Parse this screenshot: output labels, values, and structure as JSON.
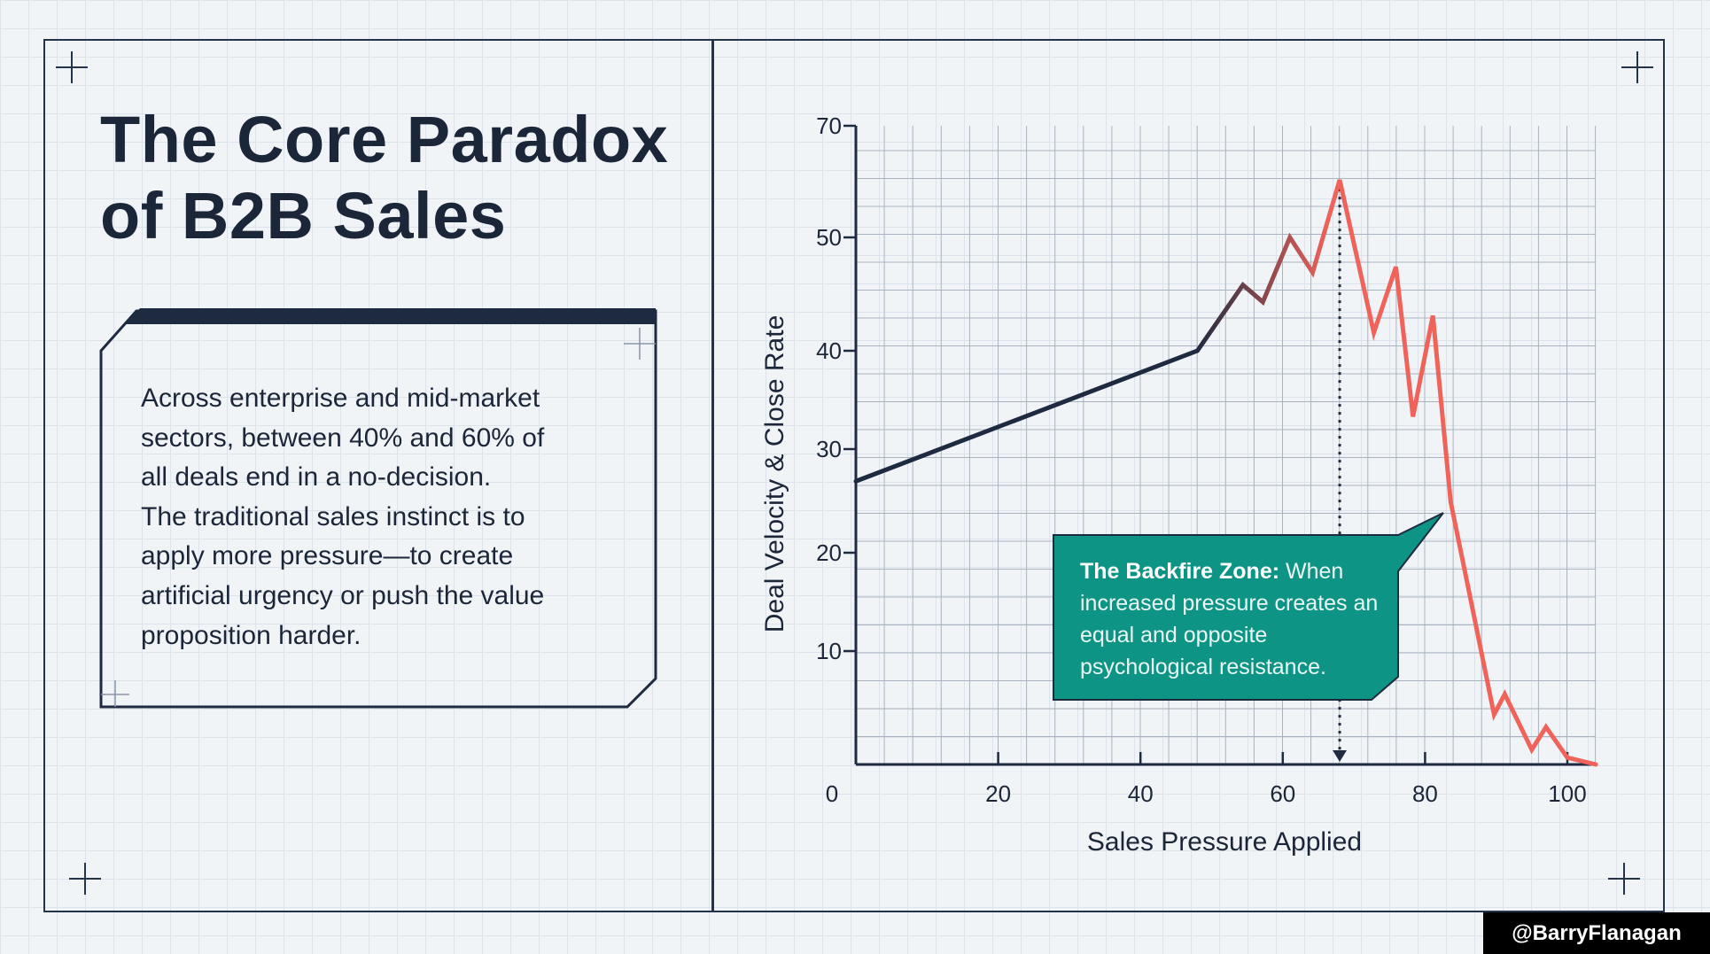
{
  "title_lines": [
    "The Core Paradox",
    "of B2B Sales"
  ],
  "body_lines": [
    "Across enterprise and mid-market",
    "sectors, between 40% and 60% of",
    "all deals end in a no-decision.",
    "The traditional sales instinct is to",
    "apply more pressure—to create",
    "artificial urgency or push the value",
    "proposition harder."
  ],
  "callout": {
    "title": "The Backfire Zone:",
    "text": "When increased pressure creates an equal and opposite psychological resistance.",
    "color": "#0e9485"
  },
  "watermark": "@BarryFlanagan",
  "chart_data": {
    "type": "line",
    "xlabel": "Sales Pressure Applied",
    "ylabel": "Deal Velocity & Close Rate",
    "x_ticks": [
      0,
      20,
      40,
      60,
      80,
      100
    ],
    "y_ticks": [
      10,
      20,
      30,
      40,
      50,
      70
    ],
    "xlim": [
      0,
      104
    ],
    "ylim": [
      0,
      70
    ],
    "grid": true,
    "series": [
      {
        "name": "Deal Velocity & Close Rate",
        "x": [
          0,
          48,
          54.4,
          57.2,
          61,
          64.2,
          68,
          72.8,
          75.9,
          78.3,
          81.1,
          83.6,
          85.8,
          89.7,
          91.2,
          95,
          97,
          100,
          104
        ],
        "y": [
          26.9,
          40,
          45.8,
          44.3,
          50,
          46.9,
          60.3,
          41.6,
          47.4,
          33.3,
          43.1,
          24.9,
          17.4,
          4.4,
          6.2,
          1.3,
          3.3,
          0.6,
          0
        ],
        "color_start": "#1e2a40",
        "color_end": "#f0635a"
      }
    ],
    "annotation": {
      "x": 68,
      "label": "The Backfire Zone"
    }
  }
}
